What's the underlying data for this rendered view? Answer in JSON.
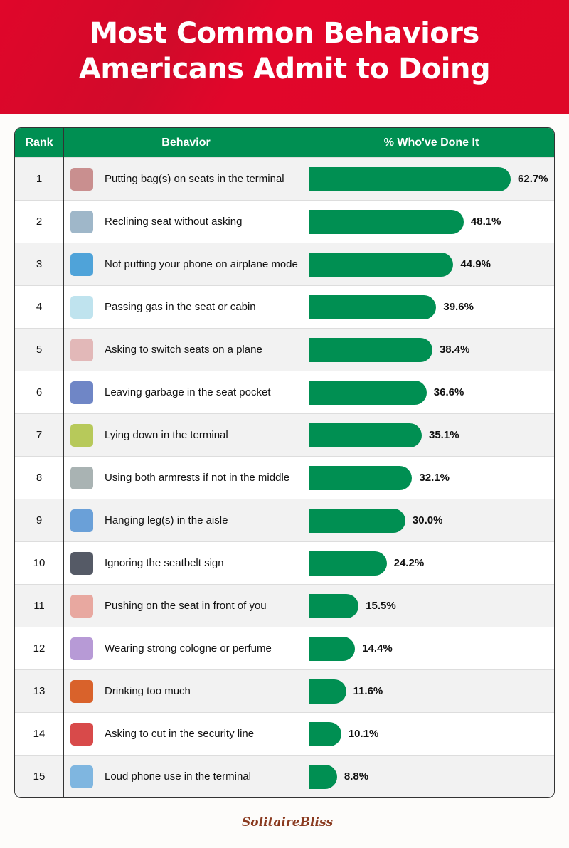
{
  "header": {
    "title_line1": "Most Common Behaviors",
    "title_line2": "Americans Admit to Doing"
  },
  "colors": {
    "banner": "#e0062a",
    "bar": "#008f52",
    "header": "#008f52"
  },
  "logo": "SolitaireBliss",
  "chart_data": {
    "type": "bar",
    "orientation": "horizontal",
    "columns": [
      "Rank",
      "Behavior",
      "% Who've Done It"
    ],
    "rows": [
      {
        "rank": "1",
        "behavior": "Putting bag(s) on seats in the terminal",
        "value": 62.7,
        "label": "62.7%",
        "icon": "bag-on-seat-icon",
        "color": "#c98f8f"
      },
      {
        "rank": "2",
        "behavior": "Reclining seat without asking",
        "value": 48.1,
        "label": "48.1%",
        "icon": "reclining-seat-icon",
        "color": "#9fb7c9"
      },
      {
        "rank": "3",
        "behavior": "Not putting your phone on airplane mode",
        "value": 44.9,
        "label": "44.9%",
        "icon": "phone-airplane-icon",
        "color": "#4fa3d9"
      },
      {
        "rank": "4",
        "behavior": "Passing gas in the seat or cabin",
        "value": 39.6,
        "label": "39.6%",
        "icon": "gas-cloud-icon",
        "color": "#bfe3ee"
      },
      {
        "rank": "5",
        "behavior": "Asking to switch seats on a plane",
        "value": 38.4,
        "label": "38.4%",
        "icon": "plane-seats-icon",
        "color": "#e2b8b8"
      },
      {
        "rank": "6",
        "behavior": "Leaving garbage in the seat pocket",
        "value": 36.6,
        "label": "36.6%",
        "icon": "seat-pocket-icon",
        "color": "#6f86c6"
      },
      {
        "rank": "7",
        "behavior": "Lying down in the terminal",
        "value": 35.1,
        "label": "35.1%",
        "icon": "lying-down-icon",
        "color": "#b7c95a"
      },
      {
        "rank": "8",
        "behavior": "Using both armrests if not in the middle",
        "value": 32.1,
        "label": "32.1%",
        "icon": "armrest-icon",
        "color": "#a9b3b3"
      },
      {
        "rank": "9",
        "behavior": "Hanging leg(s) in the aisle",
        "value": 30.0,
        "label": "30.0%",
        "icon": "leg-aisle-icon",
        "color": "#6aa0d8"
      },
      {
        "rank": "10",
        "behavior": "Ignoring the seatbelt sign",
        "value": 24.2,
        "label": "24.2%",
        "icon": "seatbelt-icon",
        "color": "#555a66"
      },
      {
        "rank": "11",
        "behavior": "Pushing on the seat in front of you",
        "value": 15.5,
        "label": "15.5%",
        "icon": "hand-push-icon",
        "color": "#e8a8a0"
      },
      {
        "rank": "12",
        "behavior": "Wearing strong cologne or perfume",
        "value": 14.4,
        "label": "14.4%",
        "icon": "perfume-icon",
        "color": "#b79ad6"
      },
      {
        "rank": "13",
        "behavior": "Drinking too much",
        "value": 11.6,
        "label": "11.6%",
        "icon": "bottle-icon",
        "color": "#d9622b"
      },
      {
        "rank": "14",
        "behavior": "Asking to cut in the security line",
        "value": 10.1,
        "label": "10.1%",
        "icon": "people-line-icon",
        "color": "#d84a4a"
      },
      {
        "rank": "15",
        "behavior": "Loud phone use in the terminal",
        "value": 8.8,
        "label": "8.8%",
        "icon": "loud-phone-icon",
        "color": "#7fb6e0"
      }
    ]
  }
}
